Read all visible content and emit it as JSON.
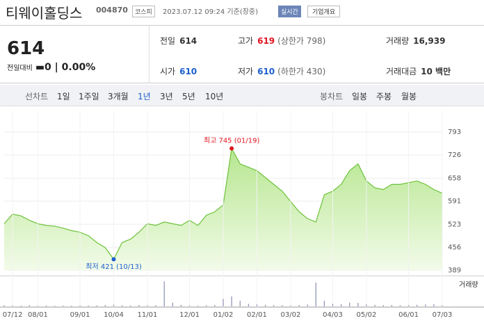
{
  "header": {
    "name": "티웨이홀딩스",
    "code": "004870",
    "market": "코스피",
    "timestamp": "2023.07.12 09:24 기준(장중)",
    "realtime": "실시간",
    "company_info": "기업개요"
  },
  "quote": {
    "price": "614",
    "change_label": "전일대비",
    "change": "0",
    "change_pct": "0.00%"
  },
  "stats": [
    {
      "label": "전일",
      "value": "614"
    },
    {
      "label": "고가",
      "value": "619",
      "note": "(상한가 798)"
    },
    {
      "label": "거래량",
      "value": "16,939"
    },
    {
      "label": "시가",
      "value": "610"
    },
    {
      "label": "저가",
      "value": "610",
      "note": "(하한가 430)"
    },
    {
      "label": "거래대금",
      "value": "10 백만"
    }
  ],
  "tabs": {
    "line_label": "선차트",
    "line_periods": [
      "1일",
      "1주일",
      "3개월",
      "1년",
      "3년",
      "5년",
      "10년"
    ],
    "candle_label": "봉차트",
    "candle_periods": [
      "일봉",
      "주봉",
      "월봉"
    ]
  },
  "chart_data": {
    "type": "line",
    "color": "#6cc23a",
    "categories": [
      null,
      "07/12",
      null,
      null,
      "08/01",
      null,
      null,
      null,
      null,
      "09/01",
      null,
      null,
      null,
      "10/04",
      null,
      null,
      null,
      "11/01",
      null,
      null,
      null,
      null,
      "12/01",
      null,
      null,
      null,
      "01/02",
      null,
      null,
      null,
      "02/01",
      null,
      null,
      null,
      "03/02",
      null,
      null,
      null,
      null,
      "04/03",
      null,
      null,
      null,
      "05/02",
      null,
      null,
      null,
      null,
      "06/01",
      null,
      null,
      null,
      "07/03"
    ],
    "values": [
      525,
      553,
      548,
      535,
      525,
      520,
      518,
      512,
      505,
      500,
      490,
      470,
      455,
      421,
      470,
      480,
      500,
      525,
      520,
      530,
      525,
      520,
      535,
      520,
      550,
      560,
      580,
      745,
      700,
      690,
      680,
      660,
      640,
      620,
      590,
      560,
      540,
      530,
      610,
      620,
      640,
      680,
      700,
      650,
      630,
      625,
      640,
      640,
      645,
      650,
      640,
      625,
      614
    ],
    "ylim": [
      389,
      793
    ],
    "yticks": [
      389,
      456,
      523,
      591,
      658,
      726,
      793
    ],
    "grid": true,
    "annotations": [
      {
        "text": "최고 745 (01/19)",
        "value": 745
      },
      {
        "text": "최저 421 (10/13)",
        "value": 421
      }
    ],
    "volume": {
      "name": "거래량",
      "values": [
        20000,
        15000,
        12000,
        18000,
        10000,
        14000,
        9000,
        12000,
        11000,
        15000,
        13000,
        17000,
        20000,
        25000,
        18000,
        14000,
        22000,
        16000,
        20000,
        400000,
        60000,
        25000,
        15000,
        12000,
        18000,
        22000,
        120000,
        160000,
        90000,
        40000,
        30000,
        25000,
        20000,
        18000,
        15000,
        20000,
        30000,
        380000,
        90000,
        40000,
        35000,
        60000,
        55000,
        30000,
        25000,
        20000,
        22000,
        18000,
        20000,
        25000,
        30000,
        35000,
        16939
      ]
    }
  }
}
